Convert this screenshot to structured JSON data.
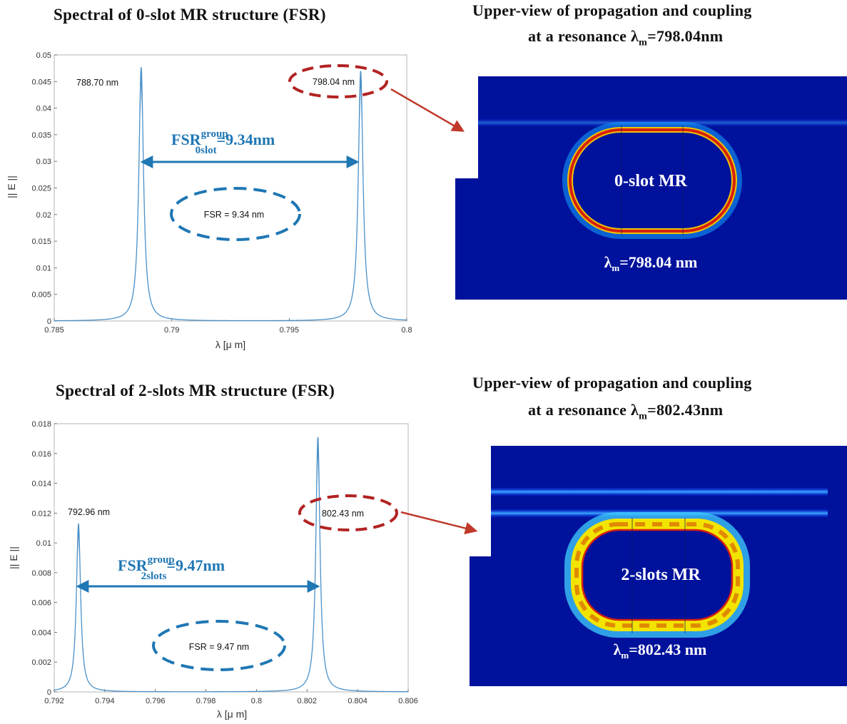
{
  "panels": {
    "top": {
      "title": "Spectral of 0-slot MR structure (FSR)",
      "field_title_line1": "Upper-view of propagation and coupling",
      "field_title_line2_prefix": "at a resonance λ",
      "field_title_line2_sub": "m",
      "field_title_line2_suffix": "=798.04nm",
      "field_center_label": "0-slot  MR",
      "field_lambda_prefix": "λ",
      "field_lambda_sub": "m",
      "field_lambda_suffix": "=798.04 nm",
      "fsr_big_prefix": "FSR",
      "fsr_big_sup": "group",
      "fsr_big_sub": "0slot",
      "fsr_big_suffix": "=9.34nm",
      "fsr_box_label": "FSR = 9.34 nm"
    },
    "bottom": {
      "title": "Spectral of 2-slots MR structure (FSR)",
      "field_title_line1": "Upper-view of propagation and coupling",
      "field_title_line2_prefix": "at a resonance λ",
      "field_title_line2_sub": "m",
      "field_title_line2_suffix": "=802.43nm",
      "field_center_label": "2-slots  MR",
      "field_lambda_prefix": "λ",
      "field_lambda_sub": "m",
      "field_lambda_suffix": "=802.43 nm",
      "fsr_big_prefix": "FSR",
      "fsr_big_sup": "group",
      "fsr_big_sub": "2slots",
      "fsr_big_suffix": "=9.47nm",
      "fsr_box_label": "FSR = 9.47 nm"
    }
  },
  "colors": {
    "curve": "#4a90c8",
    "fsr_blue": "#1f77b4",
    "ellipse_red": "#b22222",
    "arrow_red": "#c0392b",
    "field_bg": "#00129c",
    "ring_red": "#d62010",
    "ring_yellow": "#f2e400",
    "ring_cyan": "#3fd0ff"
  },
  "chart_data": [
    {
      "type": "line",
      "title": "Spectral of 0-slot MR structure (FSR)",
      "xlabel": "λ [μ m]",
      "ylabel": "|| E ||",
      "xlim": [
        0.785,
        0.8
      ],
      "ylim": [
        0,
        0.05
      ],
      "xticks": [
        "0.785",
        "0.79",
        "0.795",
        "0.8"
      ],
      "yticks": [
        "0",
        "0.005",
        "0.01",
        "0.015",
        "0.02",
        "0.025",
        "0.03",
        "0.035",
        "0.04",
        "0.045",
        "0.05"
      ],
      "peaks": [
        {
          "x": 0.7887,
          "y": 0.0477,
          "label": "788.70 nm"
        },
        {
          "x": 0.79804,
          "y": 0.047,
          "label": "798.04 nm"
        }
      ],
      "linewidth": 0.00012,
      "grid": false
    },
    {
      "type": "line",
      "title": "Spectral of 2-slots MR structure (FSR)",
      "xlabel": "λ [μ m]",
      "ylabel": "|| E ||",
      "xlim": [
        0.792,
        0.806
      ],
      "ylim": [
        0,
        0.018
      ],
      "xticks": [
        "0.792",
        "0.794",
        "0.796",
        "0.798",
        "0.8",
        "0.802",
        "0.804",
        "0.806"
      ],
      "yticks": [
        "0",
        "0.002",
        "0.004",
        "0.006",
        "0.008",
        "0.01",
        "0.012",
        "0.014",
        "0.016",
        "0.018"
      ],
      "peaks": [
        {
          "x": 0.79296,
          "y": 0.0113,
          "label": "792.96 nm"
        },
        {
          "x": 0.80243,
          "y": 0.0171,
          "label": "802.43 nm"
        }
      ],
      "linewidth": 0.0001,
      "grid": false
    }
  ]
}
